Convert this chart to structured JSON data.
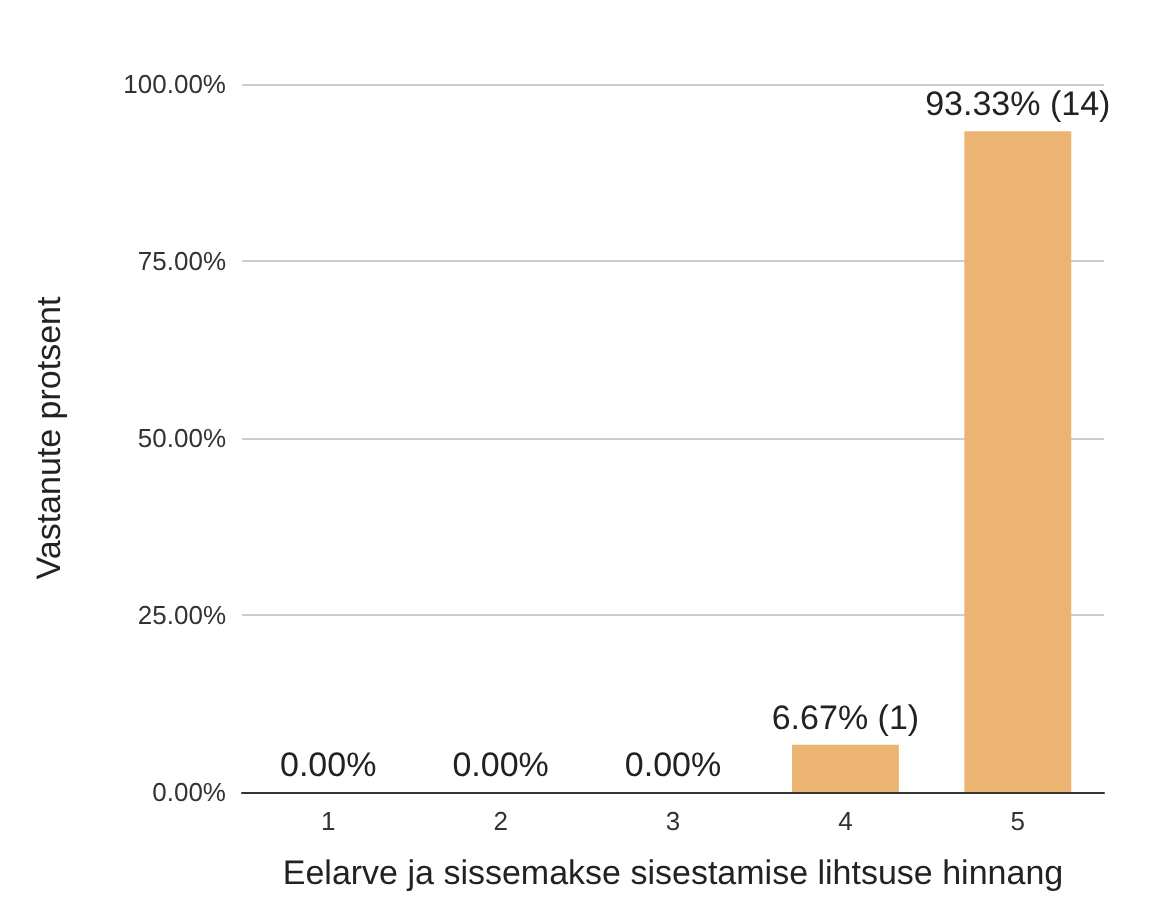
{
  "chart_data": {
    "type": "bar",
    "xlabel": "Eelarve ja sissemakse sisestamise lihtsuse hinnang",
    "ylabel": "Vastanute protsent",
    "categories": [
      "1",
      "2",
      "3",
      "4",
      "5"
    ],
    "values": [
      0,
      0,
      0,
      6.67,
      93.33
    ],
    "value_labels": [
      "0.00%",
      "0.00%",
      "0.00%",
      "6.67% (1)",
      "93.33% (14)"
    ],
    "color": "#ecb473",
    "ylim": [
      0,
      100
    ],
    "yticks": [
      {
        "value": 0,
        "label": "0.00%"
      },
      {
        "value": 25,
        "label": "25.00%"
      },
      {
        "value": 50,
        "label": "50.00%"
      },
      {
        "value": 75,
        "label": "75.00%"
      },
      {
        "value": 100,
        "label": "100.00%"
      }
    ],
    "grid": "y"
  }
}
